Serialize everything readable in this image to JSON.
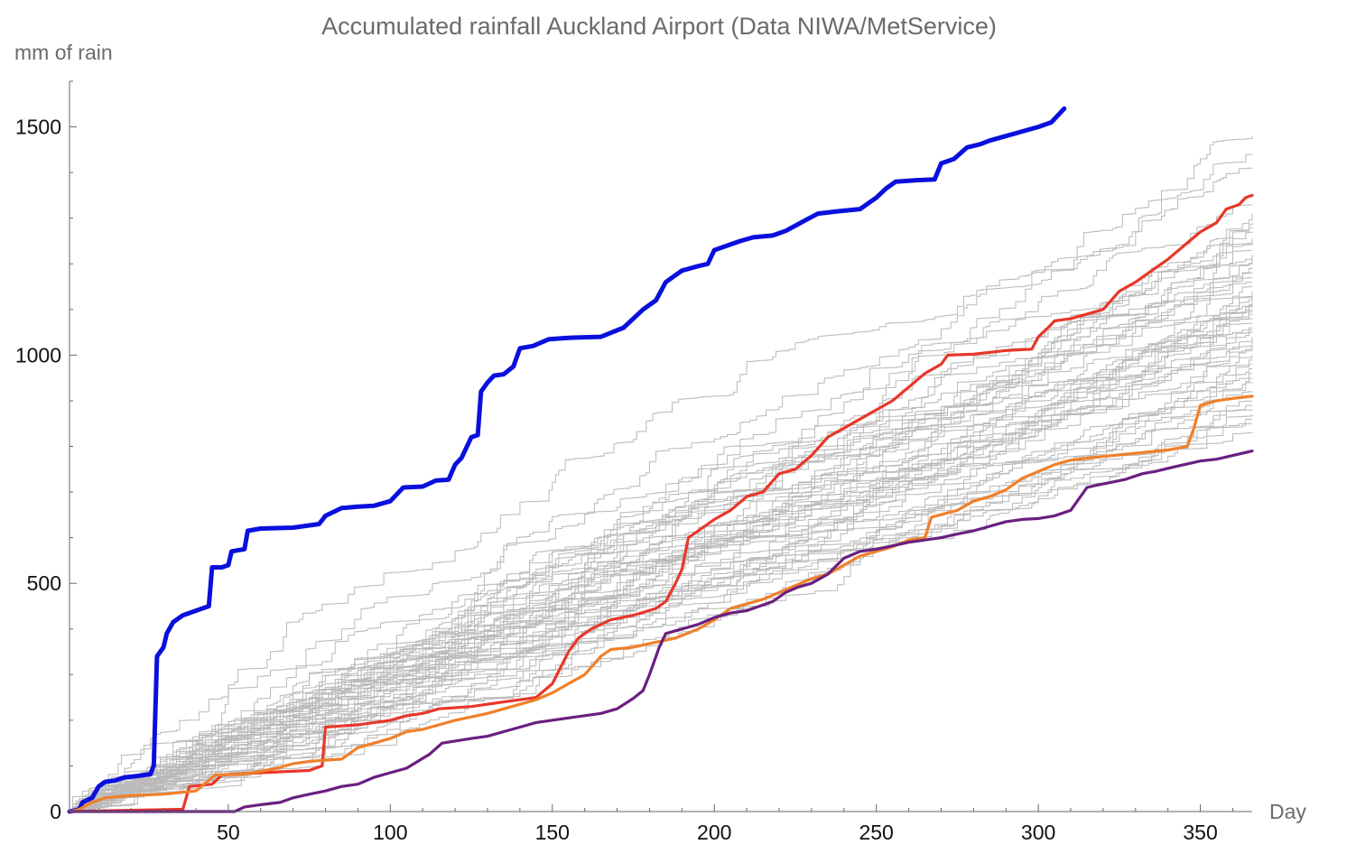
{
  "chart_data": {
    "type": "line",
    "title": "Accumulated rainfall Auckland Airport (Data NIWA/MetService)",
    "xlabel": "Day",
    "ylabel": "mm of rain",
    "xlim": [
      1,
      366
    ],
    "ylim": [
      0,
      1600
    ],
    "x_ticks": [
      50,
      100,
      150,
      200,
      250,
      300,
      350
    ],
    "y_ticks": [
      0,
      500,
      1000,
      1500
    ],
    "grid": false,
    "highlighted_series": [
      {
        "color": "#0a10dc",
        "points": [
          [
            1,
            0
          ],
          [
            4,
            5
          ],
          [
            5,
            20
          ],
          [
            8,
            30
          ],
          [
            10,
            55
          ],
          [
            12,
            65
          ],
          [
            15,
            68
          ],
          [
            18,
            75
          ],
          [
            22,
            78
          ],
          [
            26,
            82
          ],
          [
            27,
            100
          ],
          [
            28,
            340
          ],
          [
            30,
            360
          ],
          [
            31,
            390
          ],
          [
            33,
            415
          ],
          [
            36,
            430
          ],
          [
            40,
            440
          ],
          [
            44,
            450
          ],
          [
            45,
            535
          ],
          [
            48,
            535
          ],
          [
            50,
            540
          ],
          [
            51,
            570
          ],
          [
            55,
            575
          ],
          [
            56,
            615
          ],
          [
            60,
            620
          ],
          [
            70,
            622
          ],
          [
            78,
            630
          ],
          [
            80,
            648
          ],
          [
            85,
            665
          ],
          [
            90,
            668
          ],
          [
            95,
            670
          ],
          [
            100,
            680
          ],
          [
            104,
            710
          ],
          [
            110,
            712
          ],
          [
            114,
            725
          ],
          [
            118,
            727
          ],
          [
            120,
            760
          ],
          [
            122,
            775
          ],
          [
            125,
            820
          ],
          [
            127,
            825
          ],
          [
            128,
            920
          ],
          [
            130,
            940
          ],
          [
            132,
            955
          ],
          [
            135,
            958
          ],
          [
            138,
            975
          ],
          [
            140,
            1015
          ],
          [
            144,
            1020
          ],
          [
            149,
            1035
          ],
          [
            155,
            1038
          ],
          [
            165,
            1040
          ],
          [
            172,
            1060
          ],
          [
            175,
            1080
          ],
          [
            178,
            1100
          ],
          [
            182,
            1120
          ],
          [
            185,
            1160
          ],
          [
            190,
            1185
          ],
          [
            195,
            1195
          ],
          [
            198,
            1200
          ],
          [
            200,
            1230
          ],
          [
            204,
            1240
          ],
          [
            208,
            1250
          ],
          [
            212,
            1258
          ],
          [
            218,
            1262
          ],
          [
            222,
            1272
          ],
          [
            228,
            1295
          ],
          [
            232,
            1310
          ],
          [
            238,
            1315
          ],
          [
            245,
            1320
          ],
          [
            250,
            1345
          ],
          [
            253,
            1365
          ],
          [
            256,
            1380
          ],
          [
            262,
            1383
          ],
          [
            268,
            1385
          ],
          [
            270,
            1420
          ],
          [
            274,
            1430
          ],
          [
            278,
            1455
          ],
          [
            282,
            1462
          ],
          [
            285,
            1470
          ],
          [
            290,
            1480
          ],
          [
            295,
            1490
          ],
          [
            300,
            1500
          ],
          [
            304,
            1510
          ],
          [
            308,
            1540
          ]
        ]
      },
      {
        "color": "#e8372a",
        "points": [
          [
            1,
            0
          ],
          [
            36,
            5
          ],
          [
            38,
            55
          ],
          [
            45,
            60
          ],
          [
            48,
            80
          ],
          [
            60,
            85
          ],
          [
            75,
            90
          ],
          [
            79,
            100
          ],
          [
            80,
            185
          ],
          [
            90,
            190
          ],
          [
            95,
            195
          ],
          [
            100,
            200
          ],
          [
            105,
            210
          ],
          [
            110,
            215
          ],
          [
            115,
            225
          ],
          [
            125,
            230
          ],
          [
            135,
            240
          ],
          [
            145,
            250
          ],
          [
            150,
            280
          ],
          [
            155,
            350
          ],
          [
            158,
            380
          ],
          [
            162,
            400
          ],
          [
            168,
            420
          ],
          [
            175,
            430
          ],
          [
            182,
            445
          ],
          [
            185,
            460
          ],
          [
            188,
            500
          ],
          [
            190,
            530
          ],
          [
            192,
            600
          ],
          [
            196,
            620
          ],
          [
            200,
            640
          ],
          [
            205,
            660
          ],
          [
            210,
            690
          ],
          [
            215,
            700
          ],
          [
            220,
            740
          ],
          [
            225,
            750
          ],
          [
            230,
            780
          ],
          [
            235,
            820
          ],
          [
            240,
            840
          ],
          [
            245,
            860
          ],
          [
            250,
            880
          ],
          [
            255,
            900
          ],
          [
            260,
            930
          ],
          [
            265,
            960
          ],
          [
            270,
            980
          ],
          [
            272,
            1000
          ],
          [
            280,
            1002
          ],
          [
            290,
            1010
          ],
          [
            298,
            1013
          ],
          [
            300,
            1040
          ],
          [
            303,
            1060
          ],
          [
            305,
            1075
          ],
          [
            310,
            1080
          ],
          [
            315,
            1090
          ],
          [
            320,
            1100
          ],
          [
            325,
            1140
          ],
          [
            330,
            1160
          ],
          [
            335,
            1185
          ],
          [
            340,
            1210
          ],
          [
            345,
            1240
          ],
          [
            350,
            1270
          ],
          [
            355,
            1290
          ],
          [
            358,
            1320
          ],
          [
            362,
            1330
          ],
          [
            364,
            1345
          ],
          [
            366,
            1350
          ]
        ]
      },
      {
        "color": "#f0802a",
        "points": [
          [
            1,
            0
          ],
          [
            4,
            5
          ],
          [
            8,
            20
          ],
          [
            12,
            30
          ],
          [
            20,
            35
          ],
          [
            30,
            38
          ],
          [
            40,
            45
          ],
          [
            46,
            80
          ],
          [
            55,
            82
          ],
          [
            60,
            88
          ],
          [
            65,
            95
          ],
          [
            70,
            105
          ],
          [
            75,
            110
          ],
          [
            85,
            115
          ],
          [
            90,
            140
          ],
          [
            95,
            150
          ],
          [
            100,
            160
          ],
          [
            105,
            175
          ],
          [
            110,
            180
          ],
          [
            115,
            190
          ],
          [
            120,
            200
          ],
          [
            130,
            215
          ],
          [
            140,
            235
          ],
          [
            145,
            245
          ],
          [
            150,
            260
          ],
          [
            155,
            280
          ],
          [
            160,
            300
          ],
          [
            165,
            340
          ],
          [
            168,
            355
          ],
          [
            175,
            360
          ],
          [
            180,
            368
          ],
          [
            188,
            380
          ],
          [
            195,
            400
          ],
          [
            200,
            420
          ],
          [
            205,
            445
          ],
          [
            210,
            455
          ],
          [
            215,
            465
          ],
          [
            220,
            480
          ],
          [
            225,
            495
          ],
          [
            230,
            510
          ],
          [
            235,
            520
          ],
          [
            240,
            540
          ],
          [
            245,
            560
          ],
          [
            250,
            570
          ],
          [
            255,
            580
          ],
          [
            260,
            595
          ],
          [
            265,
            600
          ],
          [
            267,
            645
          ],
          [
            275,
            660
          ],
          [
            280,
            680
          ],
          [
            285,
            690
          ],
          [
            290,
            705
          ],
          [
            295,
            730
          ],
          [
            300,
            745
          ],
          [
            305,
            760
          ],
          [
            310,
            770
          ],
          [
            320,
            778
          ],
          [
            330,
            785
          ],
          [
            340,
            792
          ],
          [
            346,
            800
          ],
          [
            348,
            840
          ],
          [
            350,
            890
          ],
          [
            355,
            900
          ],
          [
            360,
            905
          ],
          [
            366,
            910
          ]
        ]
      },
      {
        "color": "#6a1f80",
        "points": [
          [
            1,
            0
          ],
          [
            52,
            0
          ],
          [
            55,
            10
          ],
          [
            60,
            15
          ],
          [
            66,
            20
          ],
          [
            70,
            30
          ],
          [
            75,
            38
          ],
          [
            80,
            45
          ],
          [
            85,
            55
          ],
          [
            90,
            60
          ],
          [
            95,
            75
          ],
          [
            100,
            85
          ],
          [
            105,
            95
          ],
          [
            112,
            125
          ],
          [
            116,
            150
          ],
          [
            125,
            160
          ],
          [
            130,
            165
          ],
          [
            135,
            175
          ],
          [
            140,
            185
          ],
          [
            145,
            195
          ],
          [
            155,
            205
          ],
          [
            160,
            210
          ],
          [
            165,
            215
          ],
          [
            170,
            225
          ],
          [
            175,
            248
          ],
          [
            178,
            265
          ],
          [
            180,
            300
          ],
          [
            183,
            360
          ],
          [
            185,
            390
          ],
          [
            190,
            400
          ],
          [
            195,
            410
          ],
          [
            200,
            425
          ],
          [
            205,
            435
          ],
          [
            210,
            440
          ],
          [
            218,
            460
          ],
          [
            222,
            480
          ],
          [
            226,
            492
          ],
          [
            230,
            500
          ],
          [
            235,
            520
          ],
          [
            240,
            555
          ],
          [
            245,
            570
          ],
          [
            250,
            575
          ],
          [
            255,
            582
          ],
          [
            260,
            590
          ],
          [
            265,
            595
          ],
          [
            270,
            600
          ],
          [
            275,
            608
          ],
          [
            280,
            615
          ],
          [
            285,
            625
          ],
          [
            290,
            635
          ],
          [
            295,
            640
          ],
          [
            300,
            642
          ],
          [
            305,
            648
          ],
          [
            310,
            660
          ],
          [
            315,
            710
          ],
          [
            318,
            715
          ],
          [
            323,
            722
          ],
          [
            327,
            728
          ],
          [
            332,
            740
          ],
          [
            336,
            745
          ],
          [
            340,
            752
          ],
          [
            345,
            760
          ],
          [
            350,
            768
          ],
          [
            355,
            772
          ],
          [
            360,
            780
          ],
          [
            366,
            790
          ]
        ]
      }
    ],
    "background_series": {
      "color": "#b9b9b9",
      "count": 52,
      "final_values": [
        1480,
        1440,
        1410,
        1330,
        1310,
        1290,
        1280,
        1270,
        1255,
        1245,
        1230,
        1220,
        1210,
        1200,
        1190,
        1180,
        1170,
        1160,
        1150,
        1140,
        1135,
        1130,
        1120,
        1115,
        1110,
        1100,
        1095,
        1090,
        1080,
        1070,
        1060,
        1055,
        1050,
        1040,
        1030,
        1020,
        1010,
        1000,
        990,
        980,
        970,
        960,
        950,
        940,
        920,
        900,
        890,
        880,
        870,
        860,
        850,
        830
      ]
    }
  }
}
